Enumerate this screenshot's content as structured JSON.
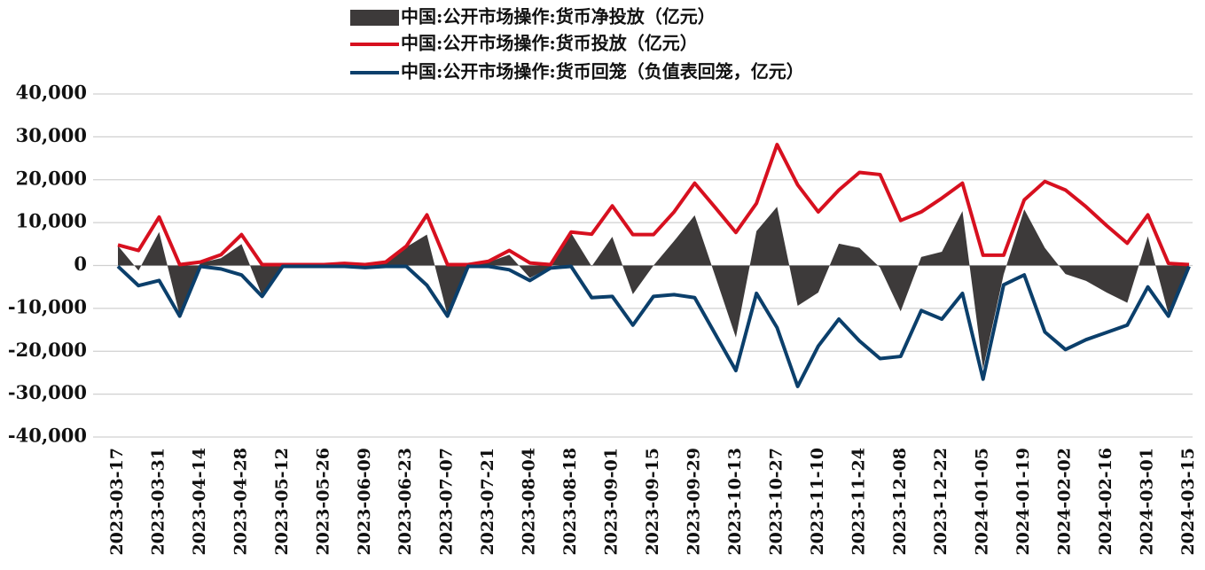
{
  "chart_data": {
    "type": "line",
    "categories": [
      "2023-03-17",
      null,
      "2023-03-31",
      null,
      "2023-04-14",
      null,
      "2023-04-28",
      null,
      "2023-05-12",
      null,
      "2023-05-26",
      null,
      "2023-06-09",
      null,
      "2023-06-23",
      null,
      "2023-07-07",
      null,
      "2023-07-21",
      null,
      "2023-08-04",
      null,
      "2023-08-18",
      null,
      "2023-09-01",
      null,
      "2023-09-15",
      null,
      "2023-09-29",
      null,
      "2023-10-13",
      null,
      "2023-10-27",
      null,
      "2023-11-10",
      null,
      "2023-11-24",
      null,
      "2023-12-08",
      null,
      "2023-12-22",
      null,
      "2024-01-05",
      null,
      "2024-01-19",
      null,
      "2024-02-02",
      null,
      "2024-02-16",
      null,
      "2024-03-01",
      null,
      "2024-03-15"
    ],
    "series": [
      {
        "name": "中国:公开市场操作:货币净投放（亿元）",
        "kind": "area",
        "color": "#3d3a3a",
        "values": [
          4600,
          -1200,
          7800,
          -11600,
          600,
          1700,
          5000,
          -7000,
          0,
          0,
          0,
          300,
          -300,
          600,
          4300,
          7200,
          -11600,
          0,
          800,
          2500,
          -2900,
          -400,
          7600,
          -200,
          6700,
          -6700,
          0,
          5700,
          11700,
          -2500,
          -16800,
          8000,
          13700,
          -9400,
          -6300,
          5100,
          4100,
          -500,
          -10700,
          2000,
          3200,
          12700,
          -24100,
          -2100,
          13100,
          4100,
          -2000,
          -3600,
          -6300,
          -8700,
          6800,
          -11300,
          0
        ]
      },
      {
        "name": "中国:公开市场操作:货币投放（亿元）",
        "kind": "line",
        "color": "#d7101f",
        "values": [
          4800,
          3500,
          11300,
          200,
          800,
          2500,
          7200,
          200,
          200,
          200,
          200,
          500,
          200,
          800,
          4500,
          11800,
          200,
          200,
          1000,
          3500,
          600,
          200,
          7800,
          7300,
          13900,
          7200,
          7200,
          12500,
          19200,
          13500,
          7700,
          14500,
          28200,
          18800,
          12500,
          17600,
          21700,
          21200,
          10500,
          12500,
          15700,
          19200,
          2400,
          2400,
          15300,
          19600,
          17600,
          13700,
          9300,
          5200,
          11800,
          500,
          200
        ]
      },
      {
        "name": "中国:公开市场操作:货币回笼（负值表回笼，亿元）",
        "kind": "line",
        "color": "#0b3f6b",
        "values": [
          -200,
          -4700,
          -3500,
          -11800,
          -200,
          -800,
          -2200,
          -7200,
          -200,
          -200,
          -200,
          -200,
          -500,
          -200,
          -200,
          -4600,
          -11800,
          -200,
          -200,
          -1000,
          -3500,
          -600,
          -200,
          -7500,
          -7200,
          -13900,
          -7200,
          -6800,
          -7500,
          -16000,
          -24500,
          -6500,
          -14500,
          -28200,
          -18800,
          -12500,
          -17600,
          -21700,
          -21200,
          -10500,
          -12500,
          -6500,
          -26500,
          -4500,
          -2200,
          -15500,
          -19600,
          -17300,
          -15600,
          -13900,
          -5000,
          -11800,
          -200
        ]
      }
    ],
    "ylim": [
      -40000,
      40000
    ],
    "yticks": [
      {
        "value": -40000,
        "label": "-40,000"
      },
      {
        "value": -30000,
        "label": "-30,000"
      },
      {
        "value": -20000,
        "label": "-20,000"
      },
      {
        "value": -10000,
        "label": "-10,000"
      },
      0,
      {
        "value": 10000,
        "label": "10,000"
      },
      {
        "value": 20000,
        "label": "20,000"
      },
      {
        "value": 30000,
        "label": "30,000"
      },
      {
        "value": 40000,
        "label": "40,000"
      }
    ],
    "grid": true,
    "legend": "top"
  }
}
